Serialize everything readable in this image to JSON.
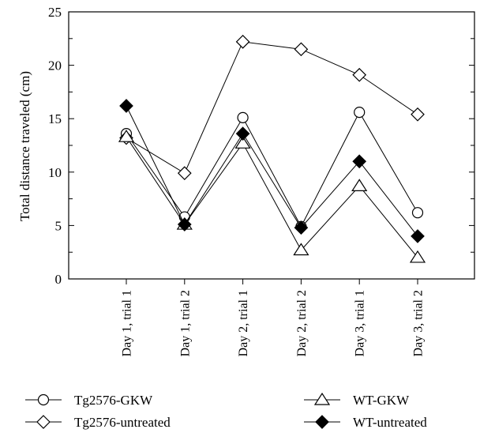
{
  "chart_data": {
    "type": "line",
    "title": "",
    "xlabel": "",
    "ylabel": "Total distance traveled (cm)",
    "ylim": [
      0,
      25
    ],
    "yticks": [
      0,
      5,
      10,
      15,
      20,
      25
    ],
    "categories": [
      "Day 1, trial 1",
      "Day 1, trial 2",
      "Day 2, trial 1",
      "Day 2, trial 2",
      "Day 3, trial 1",
      "Day 3, trial 2"
    ],
    "grid": false,
    "legend_position": "bottom",
    "series": [
      {
        "name": "Tg2576-GKW",
        "marker": "circle-open",
        "color": "#000000",
        "values": [
          13.6,
          5.8,
          15.1,
          4.9,
          15.6,
          6.2
        ]
      },
      {
        "name": "Tg2576-untreated",
        "marker": "diamond-open",
        "color": "#000000",
        "values": [
          13.2,
          9.9,
          22.2,
          21.5,
          19.1,
          15.4
        ]
      },
      {
        "name": "WT-GKW",
        "marker": "triangle-open",
        "color": "#000000",
        "values": [
          13.3,
          5.1,
          12.7,
          2.7,
          8.7,
          2.0
        ]
      },
      {
        "name": "WT-untreated",
        "marker": "diamond-filled",
        "color": "#000000",
        "values": [
          16.2,
          5.1,
          13.6,
          4.8,
          11.0,
          4.0
        ]
      }
    ]
  }
}
